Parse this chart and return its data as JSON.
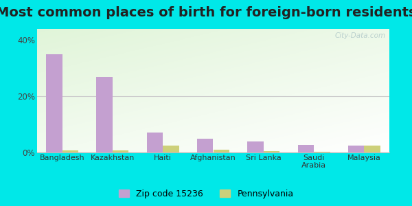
{
  "title": "Most common places of birth for foreign-born residents",
  "categories": [
    "Bangladesh",
    "Kazakhstan",
    "Haiti",
    "Afghanistan",
    "Sri Lanka",
    "Saudi\nArabia",
    "Malaysia"
  ],
  "zip_values": [
    35.0,
    27.0,
    7.0,
    5.0,
    3.8,
    2.8,
    2.5
  ],
  "pa_values": [
    0.8,
    0.8,
    2.5,
    0.9,
    0.4,
    0.3,
    2.5
  ],
  "zip_color": "#c4a0d0",
  "pa_color": "#cdd07a",
  "ylim": [
    0,
    44
  ],
  "yticks": [
    0,
    20,
    40
  ],
  "ytick_labels": [
    "0%",
    "20%",
    "40%"
  ],
  "legend_zip": "Zip code 15236",
  "legend_pa": "Pennsylvania",
  "background_outer": "#00e8e8",
  "title_fontsize": 14,
  "bar_width": 0.32,
  "watermark": "City-Data.com"
}
